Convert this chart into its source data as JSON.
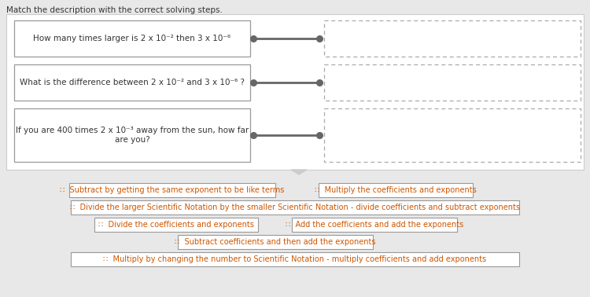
{
  "title": "Match the description with the correct solving steps.",
  "bg_top": "#ffffff",
  "bg_bottom": "#e8e8e8",
  "page_bg": "#e8e8e8",
  "q_box_fc": "#ffffff",
  "q_box_ec": "#999999",
  "a_box_fc": "#ffffff",
  "a_box_ec": "#aaaaaa",
  "btn_fc": "#ffffff",
  "btn_ec": "#999999",
  "text_color": "#333333",
  "btn_text_color": "#cc5500",
  "connector_color": "#666666",
  "title_fs": 7.5,
  "q_fs": 7.5,
  "btn_fs": 7.0,
  "q1_text": "How many times larger is 2 x 10⁻² then 3 x 10⁻⁶",
  "q2_text": "What is the difference between 2 x 10⁻² and 3 x 10⁻⁶ ?",
  "q3_line1": "If you are 400 times 2 x 10⁻³ away from the sun, how far",
  "q3_line2": "are you?",
  "btn1": "∷  Subtract by getting the same exponent to be like terms",
  "btn2": "∷  Multiply the coefficients and exponents",
  "btn3": "∷  Divide the larger Scientific Notation by the smaller Scientific Notation - divide coefficients and subtract exponents",
  "btn4": "∷  Divide the coefficients and exponents",
  "btn5": "∷  Add the coefficients and add the exponents",
  "btn6": "∷  Subtract coefficients and then add the exponents",
  "btn7": "∷  Multiply by changing the number to Scientific Notation - multiply coefficients and add exponents"
}
